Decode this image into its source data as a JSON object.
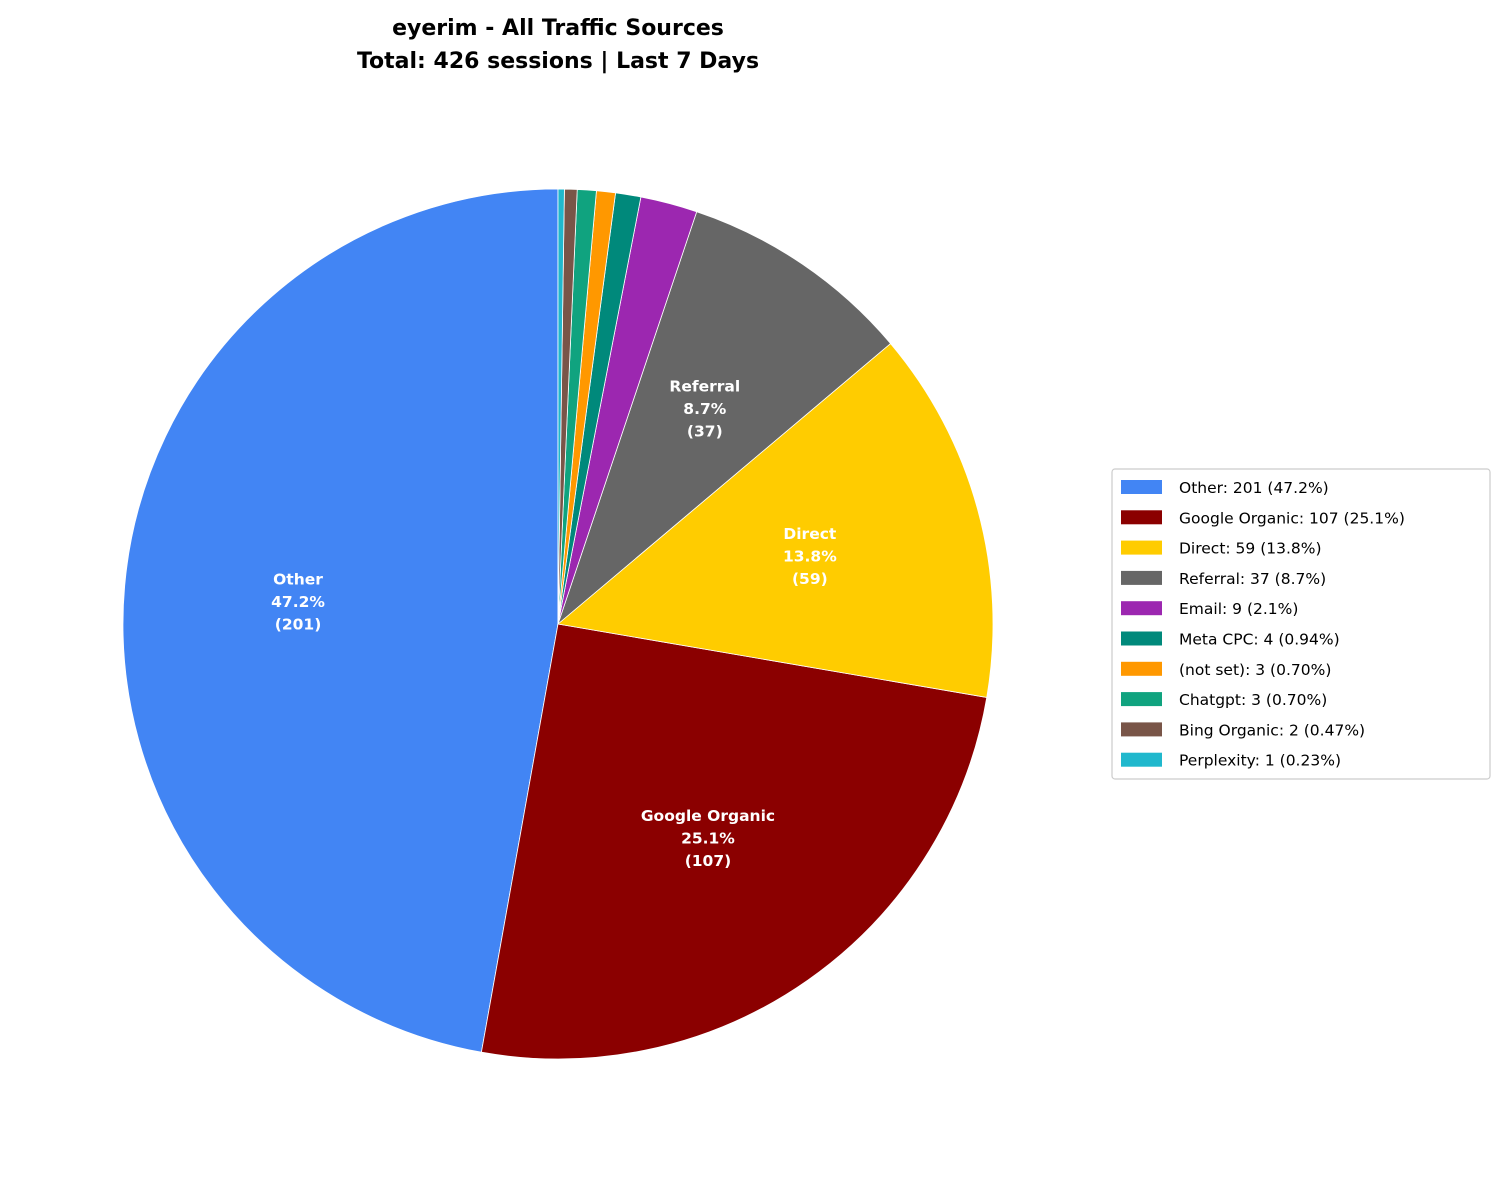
{
  "chart_data": {
    "type": "pie",
    "title": "eyerim - All Traffic Sources\nTotal: 426 sessions | Last 7 Days",
    "title_lines": [
      "eyerim - All Traffic Sources",
      "Total: 426 sessions | Last 7 Days"
    ],
    "start_angle_deg": 90,
    "direction": "counterclockwise",
    "legend_position": "right",
    "slices": [
      {
        "label": "Other",
        "value": 201,
        "percent": "47.2%",
        "color": "#4285F4",
        "inner_label": [
          "Other",
          "47.2%",
          "(201)"
        ],
        "legend": "Other: 201 (47.2%)"
      },
      {
        "label": "Google Organic",
        "value": 107,
        "percent": "25.1%",
        "color": "#8B0000",
        "inner_label": [
          "Google Organic",
          "25.1%",
          "(107)"
        ],
        "legend": "Google Organic: 107 (25.1%)"
      },
      {
        "label": "Direct",
        "value": 59,
        "percent": "13.8%",
        "color": "#FFCC00",
        "inner_label": [
          "Direct",
          "13.8%",
          "(59)"
        ],
        "legend": "Direct: 59 (13.8%)"
      },
      {
        "label": "Referral",
        "value": 37,
        "percent": "8.7%",
        "color": "#666666",
        "inner_label": [
          "Referral",
          "8.7%",
          "(37)"
        ],
        "legend": "Referral: 37 (8.7%)"
      },
      {
        "label": "Email",
        "value": 9,
        "percent": "2.1%",
        "color": "#9C27B0",
        "legend": "Email: 9 (2.1%)"
      },
      {
        "label": "Meta CPC",
        "value": 4,
        "percent": "0.94%",
        "color": "#00897B",
        "legend": "Meta CPC: 4 (0.94%)"
      },
      {
        "label": "(not set)",
        "value": 3,
        "percent": "0.70%",
        "color": "#FF9800",
        "legend": "(not set): 3 (0.70%)"
      },
      {
        "label": "Chatgpt",
        "value": 3,
        "percent": "0.70%",
        "color": "#10A37F",
        "legend": "Chatgpt: 3 (0.70%)"
      },
      {
        "label": "Bing Organic",
        "value": 2,
        "percent": "0.47%",
        "color": "#795548",
        "legend": "Bing Organic: 2 (0.47%)"
      },
      {
        "label": "Perplexity",
        "value": 1,
        "percent": "0.23%",
        "color": "#20B8CD",
        "legend": "Perplexity: 1 (0.23%)"
      }
    ]
  }
}
